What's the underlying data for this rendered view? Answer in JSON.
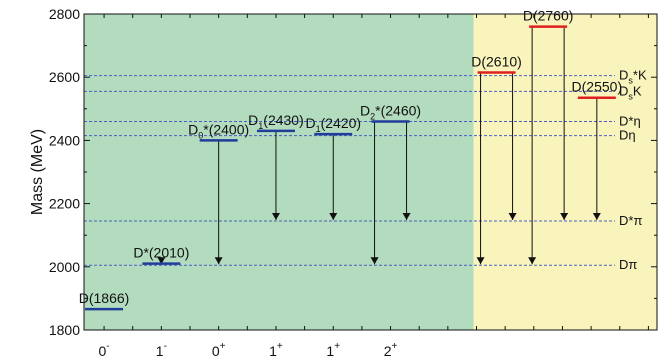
{
  "chart_data": {
    "type": "level-diagram",
    "ylabel": "Mass (MeV)",
    "ylim": [
      1800,
      2800
    ],
    "yticks": [
      "1800",
      "2000",
      "2200",
      "2400",
      "2600",
      "2800"
    ],
    "yminor_step": 100,
    "x_categories": [
      {
        "label": "0",
        "sup": "-"
      },
      {
        "label": "1",
        "sup": "-"
      },
      {
        "label": "0",
        "sup": "+"
      },
      {
        "label": "1",
        "sup": "+"
      },
      {
        "label": "1",
        "sup": "+"
      },
      {
        "label": "2",
        "sup": "+"
      }
    ],
    "regions": [
      {
        "name": "established-states",
        "color": "#b3dcbf",
        "x_from": 0,
        "x_to": 6.8
      },
      {
        "name": "new-states",
        "color": "#f8f4bc",
        "x_from": 6.8,
        "x_to": 10
      }
    ],
    "thresholds": [
      {
        "pre": "D",
        "sub": "s",
        "post": "*K",
        "mass": 2605
      },
      {
        "pre": "D",
        "sub": "s",
        "post": "K",
        "mass": 2555
      },
      {
        "pre": "D*",
        "sub": "",
        "post": "η",
        "mass": 2460
      },
      {
        "pre": "D",
        "sub": "",
        "post": "η",
        "mass": 2415
      },
      {
        "pre": "D*",
        "sub": "",
        "post": "π",
        "mass": 2145
      },
      {
        "pre": "D",
        "sub": "",
        "post": "π",
        "mass": 2005
      }
    ],
    "levels": [
      {
        "pre": "D(1866)",
        "sub": "",
        "post": "",
        "mass": 1866,
        "x": 0.35,
        "color": "#1f3d99",
        "decays_to": []
      },
      {
        "pre": "D*(2010)",
        "sub": "",
        "post": "",
        "mass": 2010,
        "x": 1.35,
        "color": "#1f3d99",
        "decays_to": [
          2005
        ]
      },
      {
        "pre": "D",
        "sub": "0",
        "post": "*(2400)",
        "mass": 2400,
        "x": 2.35,
        "color": "#1f3d99",
        "decays_to": [
          2005
        ]
      },
      {
        "pre": "D",
        "sub": "1",
        "post": "(2430)",
        "mass": 2430,
        "x": 3.35,
        "color": "#1f3d99",
        "decays_to": [
          2145
        ]
      },
      {
        "pre": "D",
        "sub": "1",
        "post": "(2420)",
        "mass": 2420,
        "x": 4.35,
        "color": "#1f3d99",
        "decays_to": [
          2145
        ]
      },
      {
        "pre": "D",
        "sub": "2",
        "post": "*(2460)",
        "mass": 2460,
        "x": 5.35,
        "color": "#1f3d99",
        "decays_to": [
          2005,
          2145
        ]
      },
      {
        "pre": "D(2610)",
        "sub": "",
        "post": "",
        "mass": 2615,
        "x": 7.2,
        "color": "#e02020",
        "decays_to": [
          2005,
          2145
        ]
      },
      {
        "pre": "D(2760)",
        "sub": "",
        "post": "",
        "mass": 2760,
        "x": 8.1,
        "color": "#e02020",
        "decays_to": [
          2005,
          2145
        ]
      },
      {
        "pre": "D(2550)",
        "sub": "",
        "post": "",
        "mass": 2535,
        "x": 8.95,
        "color": "#e02020",
        "decays_to": [
          2145
        ]
      }
    ]
  },
  "colors": {
    "threshold_line": "#4a5fc1",
    "arrow": "#111111",
    "axis": "#111111"
  }
}
